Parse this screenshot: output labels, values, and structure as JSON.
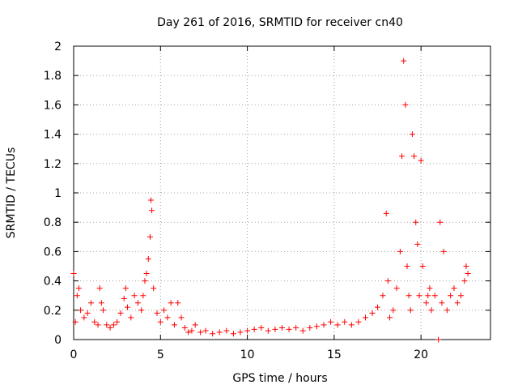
{
  "chart_data": {
    "type": "scatter",
    "title": "Day 261 of 2016, SRMTID for receiver cn40",
    "xlabel": "GPS time / hours",
    "ylabel": "SRMTID / TECUs",
    "xlim": [
      0,
      24
    ],
    "ylim": [
      0,
      2
    ],
    "x_ticks": [
      0,
      5,
      10,
      15,
      20
    ],
    "x_tick_labels": [
      "0",
      "5",
      "10",
      "15",
      "20"
    ],
    "y_ticks": [
      0,
      0.2,
      0.4,
      0.6,
      0.8,
      1,
      1.2,
      1.4,
      1.6,
      1.8,
      2
    ],
    "y_tick_labels": [
      "0",
      "0.2",
      "0.4",
      "0.6",
      "0.8",
      "1",
      "1.2",
      "1.4",
      "1.6",
      "1.8",
      "2"
    ],
    "grid": true,
    "marker": "+",
    "color": "#ff0000",
    "series": [
      {
        "name": "SRMTID",
        "x": [
          0.0,
          0.1,
          0.2,
          0.3,
          0.4,
          0.6,
          0.8,
          1.0,
          1.2,
          1.4,
          1.5,
          1.6,
          1.7,
          1.9,
          2.1,
          2.3,
          2.5,
          2.7,
          2.9,
          3.0,
          3.1,
          3.3,
          3.5,
          3.7,
          3.9,
          4.0,
          4.1,
          4.2,
          4.3,
          4.4,
          4.45,
          4.5,
          4.6,
          4.8,
          5.0,
          5.2,
          5.4,
          5.6,
          5.8,
          6.0,
          6.2,
          6.4,
          6.6,
          6.8,
          7.0,
          7.3,
          7.6,
          8.0,
          8.4,
          8.8,
          9.2,
          9.6,
          10.0,
          10.4,
          10.8,
          11.2,
          11.6,
          12.0,
          12.4,
          12.8,
          13.2,
          13.6,
          14.0,
          14.4,
          14.8,
          15.2,
          15.6,
          16.0,
          16.4,
          16.8,
          17.2,
          17.5,
          17.8,
          18.0,
          18.1,
          18.2,
          18.4,
          18.6,
          18.8,
          18.9,
          19.0,
          19.1,
          19.2,
          19.3,
          19.4,
          19.5,
          19.6,
          19.7,
          19.8,
          19.9,
          20.0,
          20.1,
          20.3,
          20.4,
          20.5,
          20.6,
          20.8,
          21.0,
          21.1,
          21.2,
          21.3,
          21.5,
          21.7,
          21.9,
          22.1,
          22.3,
          22.5,
          22.6,
          22.7
        ],
        "y": [
          0.45,
          0.12,
          0.3,
          0.35,
          0.2,
          0.15,
          0.18,
          0.25,
          0.12,
          0.1,
          0.35,
          0.25,
          0.2,
          0.1,
          0.08,
          0.1,
          0.12,
          0.18,
          0.28,
          0.35,
          0.22,
          0.15,
          0.3,
          0.25,
          0.2,
          0.3,
          0.4,
          0.45,
          0.55,
          0.7,
          0.95,
          0.88,
          0.35,
          0.18,
          0.12,
          0.2,
          0.15,
          0.25,
          0.1,
          0.25,
          0.15,
          0.08,
          0.05,
          0.06,
          0.1,
          0.05,
          0.06,
          0.04,
          0.05,
          0.06,
          0.04,
          0.05,
          0.06,
          0.07,
          0.08,
          0.06,
          0.07,
          0.08,
          0.07,
          0.08,
          0.06,
          0.08,
          0.09,
          0.1,
          0.12,
          0.1,
          0.12,
          0.1,
          0.12,
          0.15,
          0.18,
          0.22,
          0.3,
          0.86,
          0.4,
          0.15,
          0.2,
          0.35,
          0.6,
          1.25,
          1.9,
          1.6,
          0.5,
          0.3,
          0.2,
          1.4,
          1.25,
          0.8,
          0.65,
          0.3,
          1.22,
          0.5,
          0.25,
          0.3,
          0.35,
          0.2,
          0.3,
          0.0,
          0.8,
          0.25,
          0.6,
          0.2,
          0.3,
          0.35,
          0.25,
          0.3,
          0.4,
          0.5,
          0.45
        ]
      }
    ]
  }
}
